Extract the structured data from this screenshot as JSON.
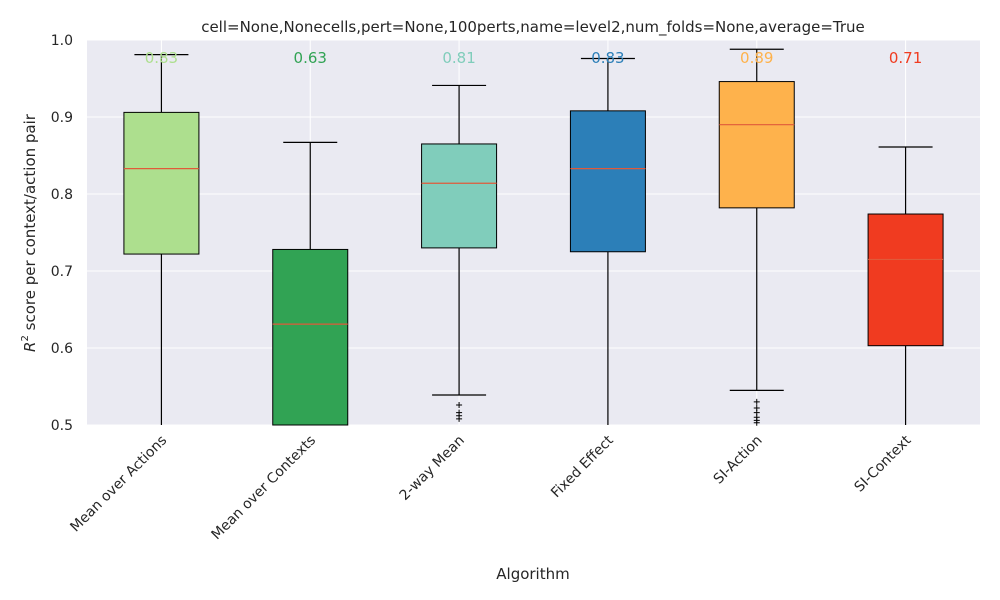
{
  "chart_data": {
    "type": "box",
    "title": "cell=None,Nonecells,pert=None,100perts,name=level2,num_folds=None,average=True",
    "xlabel": "Algorithm",
    "ylabel_prefix": "R",
    "ylabel_superscript": "2",
    "ylabel_suffix": " score per context/action pair",
    "ylim": [
      0.5,
      1.0
    ],
    "yticks": [
      "0.5",
      "0.6",
      "0.7",
      "0.8",
      "0.9",
      "1.0"
    ],
    "grid": true,
    "background": "#eaeaf2",
    "median_line_color": "#e05a3a",
    "categories": [
      "Mean over Actions",
      "Mean over Contexts",
      "2-way Mean",
      "Fixed Effect",
      "SI-Action",
      "SI-Context"
    ],
    "colors": [
      "#addf8e",
      "#31a354",
      "#80cdbb",
      "#2c7fb8",
      "#feb24c",
      "#f03b20"
    ],
    "median_labels": [
      "0.83",
      "0.63",
      "0.81",
      "0.83",
      "0.89",
      "0.71"
    ],
    "boxes": [
      {
        "whislo": 0.5,
        "q1": 0.722,
        "med": 0.833,
        "q3": 0.906,
        "whishi": 0.981,
        "fliers": []
      },
      {
        "whislo": 0.5,
        "q1": 0.5,
        "med": 0.631,
        "q3": 0.728,
        "whishi": 0.867,
        "fliers": []
      },
      {
        "whislo": 0.539,
        "q1": 0.73,
        "med": 0.814,
        "q3": 0.865,
        "whishi": 0.941,
        "fliers": [
          0.526,
          0.516,
          0.512,
          0.508
        ]
      },
      {
        "whislo": 0.5,
        "q1": 0.725,
        "med": 0.833,
        "q3": 0.908,
        "whishi": 0.976,
        "fliers": []
      },
      {
        "whislo": 0.545,
        "q1": 0.782,
        "med": 0.89,
        "q3": 0.946,
        "whishi": 0.988,
        "fliers": [
          0.53,
          0.522,
          0.516,
          0.51,
          0.506,
          0.503
        ]
      },
      {
        "whislo": 0.5,
        "q1": 0.603,
        "med": 0.715,
        "q3": 0.774,
        "whishi": 0.861,
        "fliers": []
      }
    ]
  }
}
